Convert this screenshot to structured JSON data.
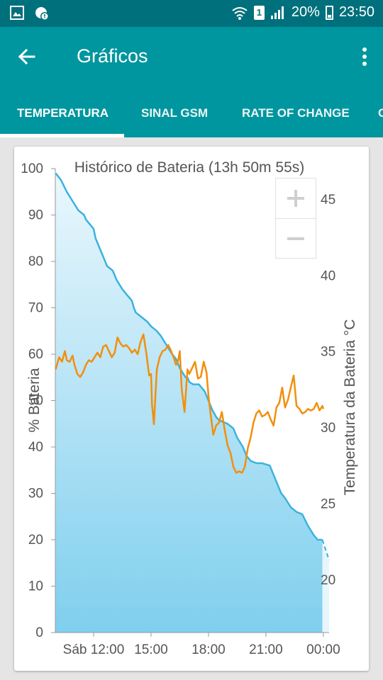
{
  "status_bar": {
    "sim": "1",
    "battery_percent": "20%",
    "time": "23:50",
    "icons": [
      "image-icon",
      "notification-alert-icon",
      "wifi-icon",
      "signal-icon",
      "battery-icon"
    ]
  },
  "app_bar": {
    "title": "Gráficos",
    "back_icon": "arrow-back-icon",
    "menu_icon": "more-vert-icon"
  },
  "tabs": [
    {
      "label": "TEMPERATURA",
      "selected": true
    },
    {
      "label": "SINAL GSM",
      "selected": false
    },
    {
      "label": "RATE OF CHANGE",
      "selected": false
    },
    {
      "label": "C",
      "selected": false
    }
  ],
  "zoom": {
    "in_label": "+",
    "out_label": "−"
  },
  "colors": {
    "status_bar": "#00707c",
    "app_bar": "#00969f",
    "battery_line": "#3bb3dd",
    "temperature_line": "#f28f0c"
  },
  "chart_data": {
    "type": "line",
    "title": "Histórico de Bateria (13h 50m 55s)",
    "ylabel": "% Bateria",
    "y2label": "Temperatura da Bateria °C",
    "ylim": [
      0,
      100
    ],
    "y2lim": [
      16.5,
      47
    ],
    "yticks": [
      0,
      10,
      20,
      30,
      40,
      50,
      60,
      70,
      80,
      90,
      100
    ],
    "y2ticks": [
      20,
      25,
      30,
      35,
      40,
      45
    ],
    "xlim": [
      10.0,
      24.3
    ],
    "xticks": [
      {
        "x": 12.0,
        "label": "Sáb 12:00"
      },
      {
        "x": 15.0,
        "label": "15:00"
      },
      {
        "x": 18.0,
        "label": "18:00"
      },
      {
        "x": 21.0,
        "label": "21:00"
      },
      {
        "x": 24.0,
        "label": "00:00"
      }
    ],
    "grid": false,
    "series": [
      {
        "name": "% Bateria",
        "axis": "left",
        "color": "#3bb3dd",
        "area": true,
        "x": [
          10.02,
          10.3,
          10.6,
          10.9,
          11.2,
          11.5,
          11.6,
          11.7,
          12.0,
          12.1,
          12.3,
          12.5,
          12.7,
          13.0,
          13.2,
          13.5,
          13.7,
          14.0,
          14.1,
          14.2,
          14.5,
          14.8,
          15.0,
          15.3,
          15.5,
          15.8,
          16.1,
          16.3,
          16.5,
          16.8,
          16.9,
          17.0,
          17.2,
          17.5,
          17.8,
          18.0,
          18.2,
          18.4,
          18.5,
          18.7,
          19.0,
          19.3,
          19.5,
          19.8,
          20.0,
          20.2,
          20.5,
          20.8,
          21.2,
          21.4,
          21.6,
          21.8,
          22.0,
          22.3,
          22.6,
          22.9,
          23.2,
          23.5,
          23.7,
          23.95
        ],
        "values": [
          99,
          97.5,
          95,
          93,
          91,
          90,
          89,
          88.5,
          87,
          85,
          83,
          81,
          79,
          78,
          76,
          74,
          73,
          71.5,
          70,
          69,
          68,
          67,
          66,
          65,
          64,
          62,
          60,
          59,
          57,
          55,
          55,
          54,
          53.5,
          53.5,
          52,
          50,
          48,
          46.5,
          46,
          45.5,
          45,
          44,
          42,
          40,
          38,
          37,
          36.5,
          36.5,
          36,
          34,
          32,
          30,
          29,
          27,
          26,
          25.5,
          23,
          21,
          20,
          20
        ]
      },
      {
        "name": "Temperatura da Bateria °C",
        "axis": "right",
        "color": "#f28f0c",
        "area": false,
        "x": [
          10.02,
          10.2,
          10.35,
          10.5,
          10.6,
          10.75,
          10.9,
          11.0,
          11.15,
          11.3,
          11.45,
          11.6,
          11.75,
          11.9,
          12.05,
          12.2,
          12.35,
          12.5,
          12.65,
          12.8,
          12.95,
          13.1,
          13.25,
          13.4,
          13.55,
          13.7,
          13.85,
          14.0,
          14.15,
          14.3,
          14.45,
          14.6,
          14.75,
          14.9,
          15.0,
          15.05,
          15.15,
          15.3,
          15.45,
          15.6,
          15.75,
          15.9,
          16.05,
          16.2,
          16.3,
          16.4,
          16.5,
          16.6,
          16.75,
          16.9,
          17.0,
          17.15,
          17.3,
          17.45,
          17.6,
          17.75,
          17.9,
          18.0,
          18.1,
          18.25,
          18.4,
          18.55,
          18.7,
          18.85,
          19.0,
          19.15,
          19.3,
          19.45,
          19.6,
          19.75,
          19.9,
          20.05,
          20.2,
          20.35,
          20.5,
          20.65,
          20.8,
          20.95,
          21.1,
          21.25,
          21.4,
          21.55,
          21.7,
          21.85,
          22.0,
          22.15,
          22.3,
          22.45,
          22.6,
          22.75,
          22.9,
          23.05,
          23.2,
          23.35,
          23.5,
          23.65,
          23.8,
          23.95,
          24.0
        ],
        "values": [
          33.8,
          34.6,
          34.3,
          35.0,
          34.4,
          34.3,
          34.7,
          34.1,
          33.5,
          33.3,
          33.6,
          34.1,
          34.4,
          34.3,
          34.6,
          34.9,
          34.6,
          35.3,
          35.4,
          35.0,
          34.6,
          34.9,
          35.9,
          35.5,
          35.3,
          35.4,
          35.2,
          34.9,
          35.1,
          34.8,
          35.6,
          36.1,
          34.9,
          33.4,
          33.5,
          31.5,
          30.2,
          33.8,
          34.6,
          35.0,
          35.1,
          35.4,
          35.0,
          34.5,
          34.1,
          34.3,
          35.0,
          32.5,
          31.0,
          33.8,
          33.5,
          33.9,
          34.3,
          33.2,
          33.3,
          34.3,
          33.6,
          32.1,
          31.0,
          29.5,
          30.1,
          30.3,
          31.0,
          29.8,
          28.8,
          28.3,
          27.4,
          27.0,
          27.1,
          27.0,
          27.4,
          28.6,
          29.3,
          30.3,
          30.9,
          31.1,
          30.7,
          30.8,
          31.0,
          30.5,
          30.1,
          31.3,
          31.6,
          32.6,
          31.3,
          31.8,
          32.6,
          33.4,
          31.4,
          31.2,
          30.9,
          31.0,
          31.2,
          31.1,
          31.2,
          31.6,
          31.1,
          31.4,
          31.2
        ]
      }
    ]
  }
}
